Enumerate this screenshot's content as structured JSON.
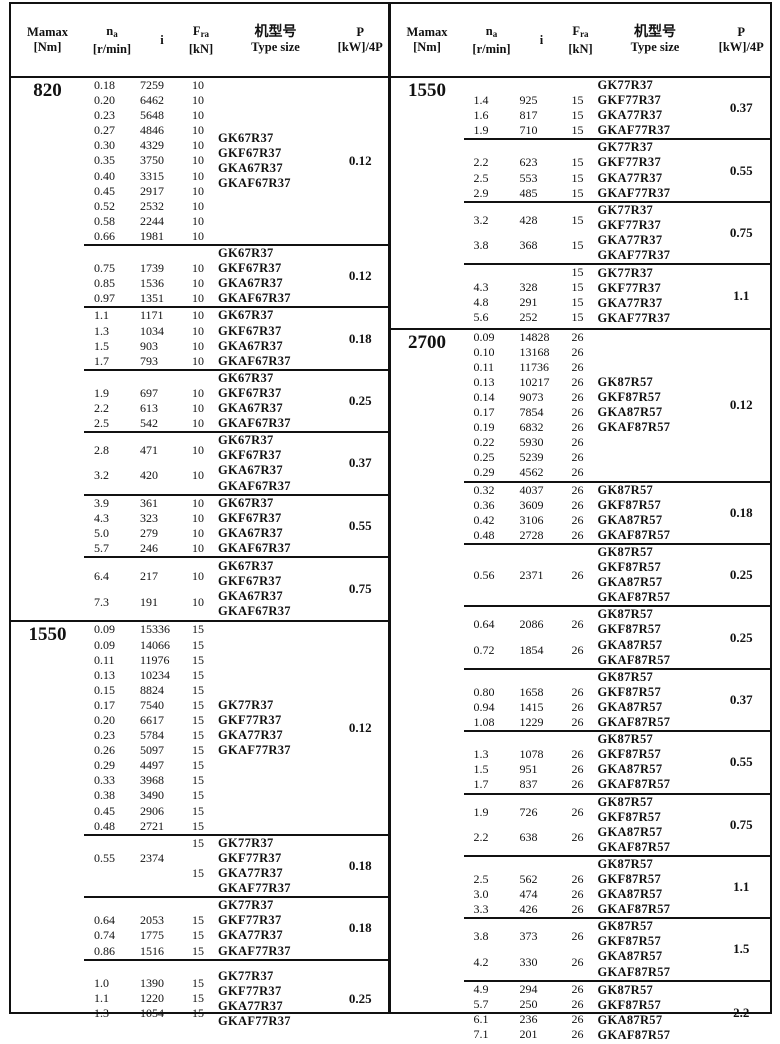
{
  "header": {
    "mamax": "Mamax",
    "mamax_unit": "[Nm]",
    "na": "n",
    "na_sub": "a",
    "na_unit": "[r/min]",
    "i": "i",
    "fra": "F",
    "fra_sub": "ra",
    "fra_unit": "[kN]",
    "type_cn": "机型号",
    "type_en": "Type size",
    "p": "P",
    "p_unit": "[kW]/4P"
  },
  "panels": [
    {
      "sections": [
        {
          "mamax": "820",
          "groups": [
            {
              "lines": 11,
              "rows": [
                [
                  "0.18",
                  "7259",
                  "10"
                ],
                [
                  "0.20",
                  "6462",
                  "10"
                ],
                [
                  "0.23",
                  "5648",
                  "10"
                ],
                [
                  "0.27",
                  "4846",
                  "10"
                ],
                [
                  "0.30",
                  "4329",
                  "10"
                ],
                [
                  "0.35",
                  "3750",
                  "10"
                ],
                [
                  "0.40",
                  "3315",
                  "10"
                ],
                [
                  "0.45",
                  "2917",
                  "10"
                ],
                [
                  "0.52",
                  "2532",
                  "10"
                ],
                [
                  "0.58",
                  "2244",
                  "10"
                ],
                [
                  "0.66",
                  "1981",
                  "10"
                ]
              ],
              "models": [
                "GK67R37",
                "GKF67R37",
                "GKA67R37",
                "GKAF67R37"
              ],
              "p": "0.12"
            },
            {
              "lines": 4,
              "rows": [
                [
                  "",
                  "",
                  ""
                ],
                [
                  "0.75",
                  "1739",
                  "10"
                ],
                [
                  "0.85",
                  "1536",
                  "10"
                ],
                [
                  "0.97",
                  "1351",
                  "10"
                ]
              ],
              "models": [
                "GK67R37",
                "GKF67R37",
                "GKA67R37",
                "GKAF67R37"
              ],
              "p": "0.12"
            },
            {
              "lines": 4,
              "rows": [
                [
                  "1.1",
                  "1171",
                  "10"
                ],
                [
                  "1.3",
                  "1034",
                  "10"
                ],
                [
                  "1.5",
                  "903",
                  "10"
                ],
                [
                  "1.7",
                  "793",
                  "10"
                ]
              ],
              "models": [
                "GK67R37",
                "GKF67R37",
                "GKA67R37",
                "GKAF67R37"
              ],
              "p": "0.18"
            },
            {
              "lines": 4,
              "rows": [
                [
                  "",
                  "",
                  ""
                ],
                [
                  "1.9",
                  "697",
                  "10"
                ],
                [
                  "2.2",
                  "613",
                  "10"
                ],
                [
                  "2.5",
                  "542",
                  "10"
                ]
              ],
              "models": [
                "GK67R37",
                "GKF67R37",
                "GKA67R37",
                "GKAF67R37"
              ],
              "p": "0.25"
            },
            {
              "lines": 4,
              "spread": true,
              "rows": [
                [
                  "2.8",
                  "471",
                  "10"
                ],
                [
                  "3.2",
                  "420",
                  "10"
                ]
              ],
              "models": [
                "GK67R37",
                "GKF67R37",
                "GKA67R37",
                "GKAF67R37"
              ],
              "p": "0.37"
            },
            {
              "lines": 4,
              "rows": [
                [
                  "3.9",
                  "361",
                  "10"
                ],
                [
                  "4.3",
                  "323",
                  "10"
                ],
                [
                  "5.0",
                  "279",
                  "10"
                ],
                [
                  "5.7",
                  "246",
                  "10"
                ]
              ],
              "models": [
                "GK67R37",
                "GKF67R37",
                "GKA67R37",
                "GKAF67R37"
              ],
              "p": "0.55"
            },
            {
              "lines": 4,
              "spread": true,
              "rows": [
                [
                  "6.4",
                  "217",
                  "10"
                ],
                [
                  "7.3",
                  "191",
                  "10"
                ]
              ],
              "models": [
                "GK67R37",
                "GKF67R37",
                "GKA67R37",
                "GKAF67R37"
              ],
              "p": "0.75"
            }
          ]
        },
        {
          "mamax": "1550",
          "groups": [
            {
              "lines": 14,
              "rows": [
                [
                  "0.09",
                  "15336",
                  "15"
                ],
                [
                  "0.09",
                  "14066",
                  "15"
                ],
                [
                  "0.11",
                  "11976",
                  "15"
                ],
                [
                  "0.13",
                  "10234",
                  "15"
                ],
                [
                  "0.15",
                  "8824",
                  "15"
                ],
                [
                  "0.17",
                  "7540",
                  "15"
                ],
                [
                  "0.20",
                  "6617",
                  "15"
                ],
                [
                  "0.23",
                  "5784",
                  "15"
                ],
                [
                  "0.26",
                  "5097",
                  "15"
                ],
                [
                  "0.29",
                  "4497",
                  "15"
                ],
                [
                  "0.33",
                  "3968",
                  "15"
                ],
                [
                  "0.38",
                  "3490",
                  "15"
                ],
                [
                  "0.45",
                  "2906",
                  "15"
                ],
                [
                  "0.48",
                  "2721",
                  "15"
                ]
              ],
              "models": [
                "GK77R37",
                "GKF77R37",
                "GKA77R37",
                "GKAF77R37"
              ],
              "p": "0.12"
            },
            {
              "lines": 4,
              "rows": [
                [
                  "",
                  "",
                  "15"
                ],
                [
                  "0.55",
                  "2374",
                  ""
                ],
                [
                  "",
                  "",
                  "15"
                ],
                [
                  "",
                  "",
                  ""
                ]
              ],
              "models": [
                "GK77R37",
                "GKF77R37",
                "GKA77R37",
                "GKAF77R37"
              ],
              "p": "0.18"
            },
            {
              "lines": 4,
              "rows": [
                [
                  "",
                  "",
                  ""
                ],
                [
                  "0.64",
                  "2053",
                  "15"
                ],
                [
                  "0.74",
                  "1775",
                  "15"
                ],
                [
                  "0.86",
                  "1516",
                  "15"
                ]
              ],
              "models": [
                "GK77R37",
                "GKF77R37",
                "GKA77R37",
                "GKAF77R37"
              ],
              "p": "0.18"
            },
            {
              "lines": 5,
              "rows": [
                [
                  "",
                  "",
                  ""
                ],
                [
                  "1.0",
                  "1390",
                  "15"
                ],
                [
                  "1.1",
                  "1220",
                  "15"
                ],
                [
                  "1.3",
                  "1054",
                  "15"
                ],
                [
                  "",
                  "",
                  ""
                ]
              ],
              "models": [
                "GK77R37",
                "GKF77R37",
                "GKA77R37",
                "GKAF77R37"
              ],
              "p": "0.25"
            }
          ]
        }
      ]
    },
    {
      "sections": [
        {
          "mamax": "1550",
          "groups": [
            {
              "lines": 4,
              "rows": [
                [
                  "",
                  "",
                  ""
                ],
                [
                  "1.4",
                  "925",
                  "15"
                ],
                [
                  "1.6",
                  "817",
                  "15"
                ],
                [
                  "1.9",
                  "710",
                  "15"
                ]
              ],
              "models": [
                "GK77R37",
                "GKF77R37",
                "GKA77R37",
                "GKAF77R37"
              ],
              "p": "0.37"
            },
            {
              "lines": 4,
              "rows": [
                [
                  "",
                  "",
                  ""
                ],
                [
                  "2.2",
                  "623",
                  "15"
                ],
                [
                  "2.5",
                  "553",
                  "15"
                ],
                [
                  "2.9",
                  "485",
                  "15"
                ]
              ],
              "models": [
                "GK77R37",
                "GKF77R37",
                "GKA77R37",
                "GKAF77R37"
              ],
              "p": "0.55"
            },
            {
              "lines": 4,
              "spread": true,
              "rows": [
                [
                  "3.2",
                  "428",
                  "15"
                ],
                [
                  "3.8",
                  "368",
                  "15"
                ]
              ],
              "models": [
                "GK77R37",
                "GKF77R37",
                "GKA77R37",
                "GKAF77R37"
              ],
              "p": "0.75"
            },
            {
              "lines": 4,
              "rows": [
                [
                  "",
                  "",
                  "15"
                ],
                [
                  "4.3",
                  "328",
                  "15"
                ],
                [
                  "4.8",
                  "291",
                  "15"
                ],
                [
                  "5.6",
                  "252",
                  "15"
                ]
              ],
              "models": [
                "GK77R37",
                "GKF77R37",
                "GKA77R37",
                "GKAF77R37"
              ],
              "p": "1.1"
            }
          ]
        },
        {
          "mamax": "2700",
          "groups": [
            {
              "lines": 10,
              "rows": [
                [
                  "0.09",
                  "14828",
                  "26"
                ],
                [
                  "0.10",
                  "13168",
                  "26"
                ],
                [
                  "0.11",
                  "11736",
                  "26"
                ],
                [
                  "0.13",
                  "10217",
                  "26"
                ],
                [
                  "0.14",
                  "9073",
                  "26"
                ],
                [
                  "0.17",
                  "7854",
                  "26"
                ],
                [
                  "0.19",
                  "6832",
                  "26"
                ],
                [
                  "0.22",
                  "5930",
                  "26"
                ],
                [
                  "0.25",
                  "5239",
                  "26"
                ],
                [
                  "0.29",
                  "4562",
                  "26"
                ]
              ],
              "models": [
                "GK87R57",
                "GKF87R57",
                "GKA87R57",
                "GKAF87R57"
              ],
              "p": "0.12"
            },
            {
              "lines": 4,
              "rows": [
                [
                  "0.32",
                  "4037",
                  "26"
                ],
                [
                  "0.36",
                  "3609",
                  "26"
                ],
                [
                  "0.42",
                  "3106",
                  "26"
                ],
                [
                  "0.48",
                  "2728",
                  "26"
                ]
              ],
              "models": [
                "GK87R57",
                "GKF87R57",
                "GKA87R57",
                "GKAF87R57"
              ],
              "p": "0.18"
            },
            {
              "lines": 4,
              "spread": true,
              "rows": [
                [
                  "0.56",
                  "2371",
                  "26"
                ]
              ],
              "models": [
                "GK87R57",
                "GKF87R57",
                "GKA87R57",
                "GKAF87R57"
              ],
              "p": "0.25"
            },
            {
              "lines": 4,
              "spread": true,
              "rows": [
                [
                  "0.64",
                  "2086",
                  "26"
                ],
                [
                  "0.72",
                  "1854",
                  "26"
                ]
              ],
              "models": [
                "GK87R57",
                "GKF87R57",
                "GKA87R57",
                "GKAF87R57"
              ],
              "p": "0.25"
            },
            {
              "lines": 4,
              "rows": [
                [
                  "",
                  "",
                  ""
                ],
                [
                  "0.80",
                  "1658",
                  "26"
                ],
                [
                  "0.94",
                  "1415",
                  "26"
                ],
                [
                  "1.08",
                  "1229",
                  "26"
                ]
              ],
              "models": [
                "GK87R57",
                "GKF87R57",
                "GKA87R57",
                "GKAF87R57"
              ],
              "p": "0.37"
            },
            {
              "lines": 4,
              "rows": [
                [
                  "",
                  "",
                  ""
                ],
                [
                  "1.3",
                  "1078",
                  "26"
                ],
                [
                  "1.5",
                  "951",
                  "26"
                ],
                [
                  "1.7",
                  "837",
                  "26"
                ]
              ],
              "models": [
                "GK87R57",
                "GKF87R57",
                "GKA87R57",
                "GKAF87R57"
              ],
              "p": "0.55"
            },
            {
              "lines": 4,
              "spread": true,
              "rows": [
                [
                  "1.9",
                  "726",
                  "26"
                ],
                [
                  "2.2",
                  "638",
                  "26"
                ]
              ],
              "models": [
                "GK87R57",
                "GKF87R57",
                "GKA87R57",
                "GKAF87R57"
              ],
              "p": "0.75"
            },
            {
              "lines": 4,
              "rows": [
                [
                  "",
                  "",
                  ""
                ],
                [
                  "2.5",
                  "562",
                  "26"
                ],
                [
                  "3.0",
                  "474",
                  "26"
                ],
                [
                  "3.3",
                  "426",
                  "26"
                ]
              ],
              "models": [
                "GK87R57",
                "GKF87R57",
                "GKA87R57",
                "GKAF87R57"
              ],
              "p": "1.1"
            },
            {
              "lines": 4,
              "spread": true,
              "rows": [
                [
                  "3.8",
                  "373",
                  "26"
                ],
                [
                  "4.2",
                  "330",
                  "26"
                ]
              ],
              "models": [
                "GK87R57",
                "GKF87R57",
                "GKA87R57",
                "GKAF87R57"
              ],
              "p": "1.5"
            },
            {
              "lines": 4,
              "rows": [
                [
                  "4.9",
                  "294",
                  "26"
                ],
                [
                  "5.7",
                  "250",
                  "26"
                ],
                [
                  "6.1",
                  "236",
                  "26"
                ],
                [
                  "7.1",
                  "201",
                  "26"
                ]
              ],
              "models": [
                "GK87R57",
                "GKF87R57",
                "GKA87R57",
                "GKAF87R57"
              ],
              "p": "2.2"
            }
          ]
        }
      ]
    }
  ]
}
